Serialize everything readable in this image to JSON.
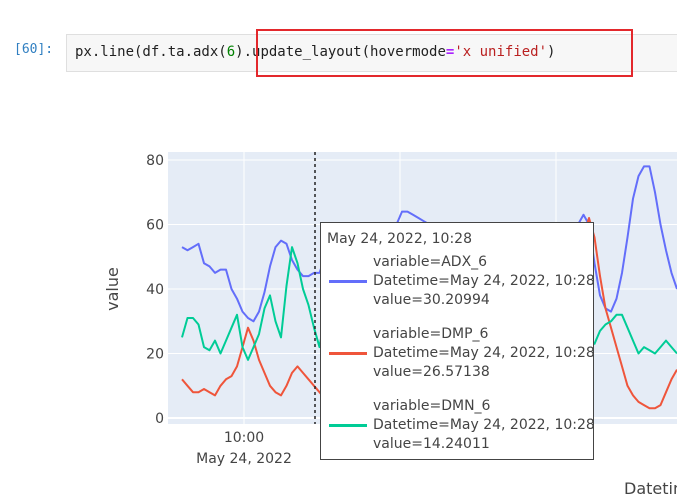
{
  "cell": {
    "prompt": "[60]:",
    "code": {
      "part1": "px.line(df.ta.adx(",
      "num": "6",
      "part2": ").update_layout(hovermode",
      "op": "=",
      "str": "'x unified'",
      "part3": ")"
    }
  },
  "chart_data": {
    "type": "line",
    "ylabel": "value",
    "xlabel": "Datetim",
    "y_ticks": [
      "0",
      "20",
      "40",
      "60",
      "80"
    ],
    "x_ticks": [
      {
        "line1": "10:00",
        "line2": "May 24, 2022"
      }
    ],
    "ylim": [
      -3,
      82
    ],
    "grid": true,
    "series": [
      {
        "name": "ADX_6",
        "color": "#636efa",
        "values": [
          53,
          52,
          53,
          54,
          48,
          47,
          45,
          46,
          46,
          40,
          37,
          33,
          31,
          30,
          33,
          39,
          47,
          53,
          55,
          54,
          49,
          46,
          44,
          44,
          45,
          45,
          50,
          52,
          54,
          56,
          57,
          51,
          44,
          37,
          33,
          30,
          33,
          42,
          52,
          60,
          64,
          64,
          63,
          62,
          61,
          60,
          56,
          48,
          41,
          37,
          36,
          38,
          40,
          44,
          46,
          44,
          42,
          40,
          34,
          31,
          30,
          33,
          39,
          44,
          47,
          44,
          40,
          36,
          40,
          44,
          50,
          55,
          60,
          63,
          60,
          48,
          38,
          34,
          33,
          37,
          45,
          56,
          68,
          75,
          78,
          78,
          70,
          60,
          52,
          45,
          40
        ]
      },
      {
        "name": "DMP_6",
        "color": "#ef553b",
        "values": [
          12,
          10,
          8,
          8,
          9,
          8,
          7,
          10,
          12,
          13,
          16,
          22,
          28,
          24,
          18,
          14,
          10,
          8,
          7,
          10,
          14,
          16,
          14,
          12,
          10,
          8,
          6,
          5,
          5,
          4,
          10,
          18,
          28,
          30,
          26,
          22,
          18,
          14,
          12,
          10,
          8,
          10,
          14,
          18,
          22,
          26,
          24,
          20,
          16,
          14,
          16,
          18,
          22,
          20,
          16,
          12,
          10,
          14,
          18,
          20,
          22,
          24,
          26,
          28,
          30,
          32,
          34,
          36,
          38,
          40,
          42,
          46,
          50,
          56,
          62,
          56,
          44,
          34,
          28,
          22,
          16,
          10,
          7,
          5,
          4,
          3,
          3,
          4,
          8,
          12,
          15
        ]
      },
      {
        "name": "DMN_6",
        "color": "#00cc96",
        "values": [
          25,
          31,
          31,
          29,
          22,
          21,
          24,
          20,
          24,
          28,
          32,
          22,
          18,
          22,
          26,
          34,
          38,
          30,
          25,
          41,
          53,
          48,
          40,
          35,
          28,
          22,
          32,
          34,
          40,
          38,
          42,
          28,
          20,
          22,
          26,
          18,
          14,
          14,
          12,
          16,
          20,
          24,
          26,
          28,
          32,
          30,
          28,
          26,
          24,
          22,
          20,
          18,
          16,
          20,
          24,
          26,
          24,
          22,
          20,
          18,
          17,
          20,
          22,
          24,
          26,
          24,
          22,
          20,
          22,
          24,
          28,
          30,
          27,
          24,
          23,
          23,
          27,
          29,
          30,
          32,
          32,
          28,
          24,
          20,
          22,
          21,
          20,
          22,
          24,
          22,
          20
        ]
      }
    ]
  },
  "hover": {
    "title": "May 24, 2022, 10:28",
    "entries": [
      {
        "variable": "variable=ADX_6",
        "datetime": "Datetime=May 24, 2022, 10:28",
        "value": "value=30.20994",
        "color": "#636efa"
      },
      {
        "variable": "variable=DMP_6",
        "datetime": "Datetime=May 24, 2022, 10:28",
        "value": "value=26.57138",
        "color": "#ef553b"
      },
      {
        "variable": "variable=DMN_6",
        "datetime": "Datetime=May 24, 2022, 10:28",
        "value": "value=14.24011",
        "color": "#00cc96"
      }
    ]
  }
}
